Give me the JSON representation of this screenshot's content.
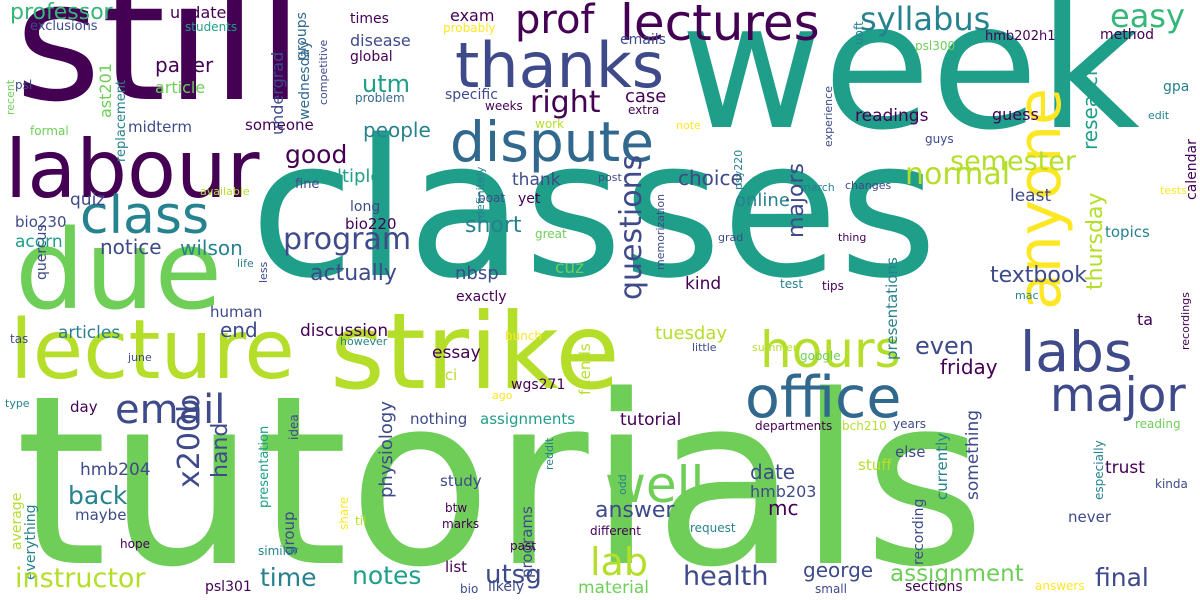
{
  "palette": {
    "purple": "#440154",
    "indigo": "#3e4a89",
    "blue": "#31688e",
    "teal": "#26828e",
    "green": "#1f9e89",
    "lightgreen": "#35b779",
    "lime": "#6ece58",
    "yellowgreen": "#b5de2b",
    "yellow": "#fde725"
  },
  "words": [
    {
      "text": "tutorials",
      "c": "lime"
    },
    {
      "text": "classes",
      "c": "green"
    },
    {
      "text": "week",
      "c": "green"
    },
    {
      "text": "still",
      "c": "purple"
    },
    {
      "text": "strike",
      "c": "yellowgreen"
    },
    {
      "text": "lecture",
      "c": "yellowgreen"
    },
    {
      "text": "due",
      "c": "lime"
    },
    {
      "text": "labour",
      "c": "purple"
    },
    {
      "text": "thanks",
      "c": "indigo"
    },
    {
      "text": "dispute",
      "c": "blue"
    },
    {
      "text": "lectures",
      "c": "purple"
    },
    {
      "text": "class",
      "c": "teal"
    },
    {
      "text": "office",
      "c": "blue"
    },
    {
      "text": "hours",
      "c": "yellowgreen"
    },
    {
      "text": "labs",
      "c": "indigo"
    },
    {
      "text": "anyone",
      "c": "yellow"
    },
    {
      "text": "major",
      "c": "indigo"
    },
    {
      "text": "well",
      "c": "lime"
    },
    {
      "text": "email",
      "c": "indigo"
    },
    {
      "text": "prof",
      "c": "purple"
    },
    {
      "text": "syllabus",
      "c": "teal"
    },
    {
      "text": "easy",
      "c": "lightgreen"
    },
    {
      "text": "professor",
      "c": "lightgreen"
    },
    {
      "text": "update",
      "c": "purple"
    },
    {
      "text": "exam",
      "c": "purple"
    },
    {
      "text": "emails",
      "c": "indigo"
    },
    {
      "text": "method",
      "c": "purple"
    },
    {
      "text": "exclusions",
      "c": "indigo"
    },
    {
      "text": "students",
      "c": "green"
    },
    {
      "text": "times",
      "c": "purple"
    },
    {
      "text": "probably",
      "c": "yellow"
    },
    {
      "text": "uoft",
      "c": "teal"
    },
    {
      "text": "hmb202h1",
      "c": "purple"
    },
    {
      "text": "psl300",
      "c": "lime"
    },
    {
      "text": "disease",
      "c": "indigo"
    },
    {
      "text": "global",
      "c": "purple"
    },
    {
      "text": "groups",
      "c": "blue"
    },
    {
      "text": "competitive",
      "c": "indigo"
    },
    {
      "text": "problem",
      "c": "blue"
    },
    {
      "text": "paper",
      "c": "purple"
    },
    {
      "text": "article",
      "c": "lime"
    },
    {
      "text": "utm",
      "c": "green"
    },
    {
      "text": "right",
      "c": "purple"
    },
    {
      "text": "specific",
      "c": "indigo"
    },
    {
      "text": "case",
      "c": "purple"
    },
    {
      "text": "weeks",
      "c": "purple"
    },
    {
      "text": "extra",
      "c": "purple"
    },
    {
      "text": "note",
      "c": "yellow"
    },
    {
      "text": "work",
      "c": "yellowgreen"
    },
    {
      "text": "midterm",
      "c": "indigo"
    },
    {
      "text": "someone",
      "c": "purple"
    },
    {
      "text": "people",
      "c": "teal"
    },
    {
      "text": "readings",
      "c": "purple"
    },
    {
      "text": "guess",
      "c": "purple"
    },
    {
      "text": "research",
      "c": "green"
    },
    {
      "text": "gpa",
      "c": "teal"
    },
    {
      "text": "edit",
      "c": "teal"
    },
    {
      "text": "guys",
      "c": "indigo"
    },
    {
      "text": "calendar",
      "c": "purple"
    },
    {
      "text": "good",
      "c": "purple"
    },
    {
      "text": "multiple",
      "c": "green"
    },
    {
      "text": "semester",
      "c": "yellowgreen"
    },
    {
      "text": "normal",
      "c": "yellowgreen"
    },
    {
      "text": "quiz",
      "c": "indigo"
    },
    {
      "text": "thank",
      "c": "indigo"
    },
    {
      "text": "choice",
      "c": "indigo"
    },
    {
      "text": "online",
      "c": "teal"
    },
    {
      "text": "majors",
      "c": "indigo"
    },
    {
      "text": "questions",
      "c": "indigo"
    },
    {
      "text": "fine",
      "c": "indigo"
    },
    {
      "text": "available",
      "c": "yellowgreen"
    },
    {
      "text": "boat",
      "c": "indigo"
    },
    {
      "text": "post",
      "c": "indigo"
    },
    {
      "text": "psy220",
      "c": "teal"
    },
    {
      "text": "march",
      "c": "teal"
    },
    {
      "text": "changes",
      "c": "indigo"
    },
    {
      "text": "least",
      "c": "indigo"
    },
    {
      "text": "tests",
      "c": "yellow"
    },
    {
      "text": "program",
      "c": "indigo"
    },
    {
      "text": "bio230",
      "c": "indigo"
    },
    {
      "text": "bio220",
      "c": "purple"
    },
    {
      "text": "long",
      "c": "indigo"
    },
    {
      "text": "short",
      "c": "teal"
    },
    {
      "text": "yet",
      "c": "purple"
    },
    {
      "text": "definitely",
      "c": "teal"
    },
    {
      "text": "great",
      "c": "lime"
    },
    {
      "text": "memorization",
      "c": "indigo"
    },
    {
      "text": "grad",
      "c": "indigo"
    },
    {
      "text": "thing",
      "c": "purple"
    },
    {
      "text": "topics",
      "c": "teal"
    },
    {
      "text": "acorn",
      "c": "green"
    },
    {
      "text": "notice",
      "c": "indigo"
    },
    {
      "text": "wilson",
      "c": "teal"
    },
    {
      "text": "actually",
      "c": "indigo"
    },
    {
      "text": "nbsp",
      "c": "indigo"
    },
    {
      "text": "cuz",
      "c": "lime"
    },
    {
      "text": "textbook",
      "c": "indigo"
    },
    {
      "text": "thursday",
      "c": "yellowgreen"
    },
    {
      "text": "quercus",
      "c": "indigo"
    },
    {
      "text": "life",
      "c": "teal"
    },
    {
      "text": "less",
      "c": "indigo"
    },
    {
      "text": "exactly",
      "c": "purple"
    },
    {
      "text": "kind",
      "c": "purple"
    },
    {
      "text": "test",
      "c": "teal"
    },
    {
      "text": "tips",
      "c": "purple"
    },
    {
      "text": "mac",
      "c": "teal"
    },
    {
      "text": "recordings",
      "c": "purple"
    },
    {
      "text": "ta",
      "c": "purple"
    },
    {
      "text": "human",
      "c": "indigo"
    },
    {
      "text": "end",
      "c": "indigo"
    },
    {
      "text": "articles",
      "c": "teal"
    },
    {
      "text": "tas",
      "c": "indigo"
    },
    {
      "text": "discussion",
      "c": "purple"
    },
    {
      "text": "essay",
      "c": "purple"
    },
    {
      "text": "tuesday",
      "c": "yellowgreen"
    },
    {
      "text": "summer",
      "c": "yellowgreen"
    },
    {
      "text": "google",
      "c": "lime"
    },
    {
      "text": "presentations",
      "c": "teal"
    },
    {
      "text": "even",
      "c": "indigo"
    },
    {
      "text": "friday",
      "c": "purple"
    },
    {
      "text": "june",
      "c": "indigo"
    },
    {
      "text": "however",
      "c": "teal"
    },
    {
      "text": "bunch",
      "c": "yellow"
    },
    {
      "text": "little",
      "c": "indigo"
    },
    {
      "text": "type",
      "c": "teal"
    },
    {
      "text": "day",
      "c": "purple"
    },
    {
      "text": "sci",
      "c": "yellowgreen"
    },
    {
      "text": "friends",
      "c": "yellowgreen"
    },
    {
      "text": "wgs271",
      "c": "purple"
    },
    {
      "text": "ago",
      "c": "yellow"
    },
    {
      "text": "nothing",
      "c": "indigo"
    },
    {
      "text": "assignments",
      "c": "green"
    },
    {
      "text": "tutorial",
      "c": "purple"
    },
    {
      "text": "departments",
      "c": "purple"
    },
    {
      "text": "bch210",
      "c": "yellowgreen"
    },
    {
      "text": "years",
      "c": "indigo"
    },
    {
      "text": "reading",
      "c": "lime"
    },
    {
      "text": "x200b",
      "c": "indigo"
    },
    {
      "text": "hand",
      "c": "indigo"
    },
    {
      "text": "back",
      "c": "teal"
    },
    {
      "text": "hmb204",
      "c": "indigo"
    },
    {
      "text": "physiology",
      "c": "indigo"
    },
    {
      "text": "idea",
      "c": "indigo"
    },
    {
      "text": "presentation",
      "c": "green"
    },
    {
      "text": "reddit",
      "c": "teal"
    },
    {
      "text": "odd",
      "c": "teal"
    },
    {
      "text": "study",
      "c": "indigo"
    },
    {
      "text": "answer",
      "c": "indigo"
    },
    {
      "text": "date",
      "c": "indigo"
    },
    {
      "text": "hmb203",
      "c": "indigo"
    },
    {
      "text": "mc",
      "c": "purple"
    },
    {
      "text": "else",
      "c": "indigo"
    },
    {
      "text": "stuff",
      "c": "yellowgreen"
    },
    {
      "text": "something",
      "c": "indigo"
    },
    {
      "text": "currently",
      "c": "teal"
    },
    {
      "text": "recording",
      "c": "indigo"
    },
    {
      "text": "especially",
      "c": "teal"
    },
    {
      "text": "trust",
      "c": "purple"
    },
    {
      "text": "kinda",
      "c": "indigo"
    },
    {
      "text": "average",
      "c": "yellowgreen"
    },
    {
      "text": "everything",
      "c": "teal"
    },
    {
      "text": "maybe",
      "c": "indigo"
    },
    {
      "text": "group",
      "c": "indigo"
    },
    {
      "text": "share",
      "c": "yellow"
    },
    {
      "text": "til",
      "c": "yellowgreen"
    },
    {
      "text": "btw",
      "c": "purple"
    },
    {
      "text": "marks",
      "c": "purple"
    },
    {
      "text": "programs",
      "c": "indigo"
    },
    {
      "text": "different",
      "c": "purple"
    },
    {
      "text": "request",
      "c": "teal"
    },
    {
      "text": "never",
      "c": "indigo"
    },
    {
      "text": "hope",
      "c": "purple"
    },
    {
      "text": "similar",
      "c": "teal"
    },
    {
      "text": "past",
      "c": "purple"
    },
    {
      "text": "instructor",
      "c": "yellowgreen"
    },
    {
      "text": "time",
      "c": "teal"
    },
    {
      "text": "notes",
      "c": "green"
    },
    {
      "text": "utsg",
      "c": "indigo"
    },
    {
      "text": "lab",
      "c": "yellowgreen"
    },
    {
      "text": "health",
      "c": "indigo"
    },
    {
      "text": "george",
      "c": "indigo"
    },
    {
      "text": "assignment",
      "c": "lime"
    },
    {
      "text": "final",
      "c": "indigo"
    },
    {
      "text": "psl301",
      "c": "purple"
    },
    {
      "text": "list",
      "c": "purple"
    },
    {
      "text": "bio",
      "c": "indigo"
    },
    {
      "text": "likely",
      "c": "indigo"
    },
    {
      "text": "material",
      "c": "lime"
    },
    {
      "text": "small",
      "c": "indigo"
    },
    {
      "text": "sections",
      "c": "purple"
    },
    {
      "text": "answers",
      "c": "yellow"
    },
    {
      "text": "psl",
      "c": "indigo"
    },
    {
      "text": "recent",
      "c": "lime"
    },
    {
      "text": "ast201",
      "c": "lime"
    },
    {
      "text": "replacement",
      "c": "teal"
    },
    {
      "text": "formal",
      "c": "lime"
    },
    {
      "text": "undergrad",
      "c": "indigo"
    },
    {
      "text": "wednesday",
      "c": "blue"
    },
    {
      "text": "experience",
      "c": "indigo"
    }
  ]
}
